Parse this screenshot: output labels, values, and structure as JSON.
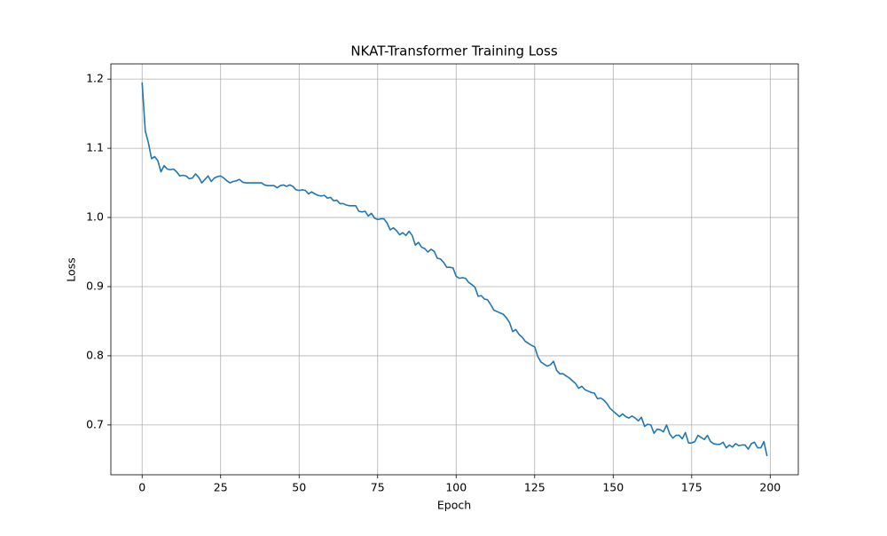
{
  "chart_data": {
    "type": "line",
    "title": "NKAT-Transformer Training Loss",
    "x_label": "Epoch",
    "y_label": "Loss",
    "color": "#1f77b4",
    "grid": true,
    "xlim": [
      -9.95,
      208.95
    ],
    "ylim": [
      0.628,
      1.222
    ],
    "xticks": [
      0,
      25,
      50,
      75,
      100,
      125,
      150,
      175,
      200
    ],
    "yticks": [
      {
        "value": 0.7,
        "label": "0.7"
      },
      {
        "value": 0.8,
        "label": "0.8"
      },
      {
        "value": 0.9,
        "label": "0.9"
      },
      {
        "value": 1.0,
        "label": "1.0"
      },
      {
        "value": 1.1,
        "label": "1.1"
      },
      {
        "value": 1.2,
        "label": "1.2"
      }
    ],
    "x": [
      0,
      1,
      2,
      3,
      4,
      5,
      6,
      7,
      8,
      9,
      10,
      11,
      12,
      13,
      14,
      15,
      16,
      17,
      18,
      19,
      20,
      21,
      22,
      23,
      24,
      25,
      26,
      27,
      28,
      29,
      30,
      31,
      32,
      33,
      34,
      35,
      36,
      37,
      38,
      39,
      40,
      41,
      42,
      43,
      44,
      45,
      46,
      47,
      48,
      49,
      50,
      51,
      52,
      53,
      54,
      55,
      56,
      57,
      58,
      59,
      60,
      61,
      62,
      63,
      64,
      65,
      66,
      67,
      68,
      69,
      70,
      71,
      72,
      73,
      74,
      75,
      76,
      77,
      78,
      79,
      80,
      81,
      82,
      83,
      84,
      85,
      86,
      87,
      88,
      89,
      90,
      91,
      92,
      93,
      94,
      95,
      96,
      97,
      98,
      99,
      100,
      101,
      102,
      103,
      104,
      105,
      106,
      107,
      108,
      109,
      110,
      111,
      112,
      113,
      114,
      115,
      116,
      117,
      118,
      119,
      120,
      121,
      122,
      123,
      124,
      125,
      126,
      127,
      128,
      129,
      130,
      131,
      132,
      133,
      134,
      135,
      136,
      137,
      138,
      139,
      140,
      141,
      142,
      143,
      144,
      145,
      146,
      147,
      148,
      149,
      150,
      151,
      152,
      153,
      154,
      155,
      156,
      157,
      158,
      159,
      160,
      161,
      162,
      163,
      164,
      165,
      166,
      167,
      168,
      169,
      170,
      171,
      172,
      173,
      174,
      175,
      176,
      177,
      178,
      179,
      180,
      181,
      182,
      183,
      184,
      185,
      186,
      187,
      188,
      189,
      190,
      191,
      192,
      193,
      194,
      195,
      196,
      197,
      198,
      199
    ],
    "values": [
      1.195,
      1.125,
      1.108,
      1.085,
      1.088,
      1.082,
      1.066,
      1.075,
      1.07,
      1.069,
      1.07,
      1.066,
      1.06,
      1.061,
      1.06,
      1.056,
      1.057,
      1.063,
      1.058,
      1.05,
      1.055,
      1.06,
      1.052,
      1.057,
      1.059,
      1.06,
      1.057,
      1.053,
      1.05,
      1.052,
      1.053,
      1.055,
      1.051,
      1.05,
      1.05,
      1.05,
      1.05,
      1.05,
      1.05,
      1.047,
      1.046,
      1.046,
      1.046,
      1.043,
      1.046,
      1.047,
      1.045,
      1.047,
      1.045,
      1.04,
      1.039,
      1.04,
      1.039,
      1.034,
      1.037,
      1.034,
      1.032,
      1.031,
      1.032,
      1.028,
      1.029,
      1.024,
      1.025,
      1.02,
      1.02,
      1.018,
      1.017,
      1.017,
      1.017,
      1.009,
      1.008,
      1.009,
      1.002,
      1.006,
      0.999,
      0.997,
      0.998,
      0.998,
      0.992,
      0.982,
      0.985,
      0.981,
      0.975,
      0.978,
      0.974,
      0.98,
      0.974,
      0.96,
      0.964,
      0.957,
      0.955,
      0.95,
      0.954,
      0.951,
      0.941,
      0.94,
      0.935,
      0.928,
      0.928,
      0.927,
      0.915,
      0.912,
      0.913,
      0.912,
      0.906,
      0.903,
      0.899,
      0.886,
      0.887,
      0.882,
      0.881,
      0.874,
      0.866,
      0.864,
      0.862,
      0.86,
      0.855,
      0.848,
      0.835,
      0.838,
      0.831,
      0.827,
      0.821,
      0.818,
      0.815,
      0.813,
      0.799,
      0.791,
      0.788,
      0.785,
      0.787,
      0.792,
      0.779,
      0.774,
      0.774,
      0.771,
      0.768,
      0.764,
      0.76,
      0.753,
      0.756,
      0.751,
      0.749,
      0.747,
      0.746,
      0.738,
      0.739,
      0.736,
      0.731,
      0.724,
      0.72,
      0.716,
      0.712,
      0.716,
      0.712,
      0.71,
      0.713,
      0.71,
      0.706,
      0.711,
      0.698,
      0.701,
      0.7,
      0.688,
      0.694,
      0.693,
      0.69,
      0.7,
      0.687,
      0.681,
      0.685,
      0.685,
      0.68,
      0.689,
      0.674,
      0.674,
      0.676,
      0.685,
      0.682,
      0.679,
      0.685,
      0.676,
      0.673,
      0.672,
      0.672,
      0.675,
      0.667,
      0.671,
      0.668,
      0.673,
      0.67,
      0.671,
      0.671,
      0.665,
      0.673,
      0.675,
      0.667,
      0.667,
      0.676,
      0.655
    ]
  }
}
